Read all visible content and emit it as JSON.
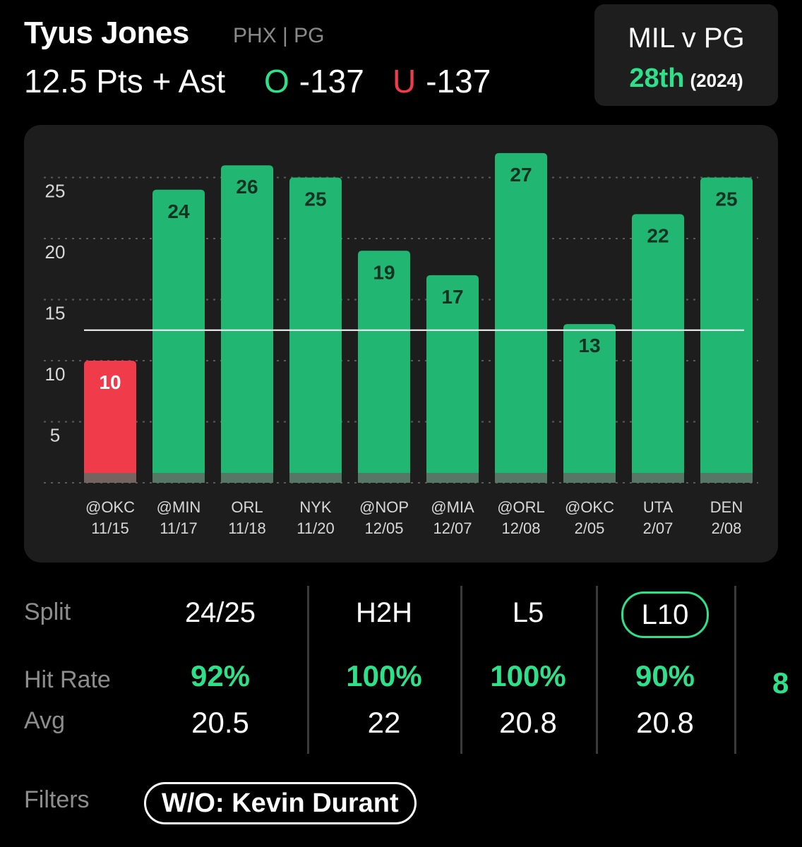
{
  "player": {
    "name": "Tyus Jones",
    "team_pos": "PHX | PG"
  },
  "prop": {
    "line_text": "12.5 Pts + Ast",
    "over_letter": "O",
    "over_odds": "-137",
    "under_letter": "U",
    "under_odds": "-137"
  },
  "matchup": {
    "title": "MIL v PG",
    "rank": "28th",
    "year": "(2024)"
  },
  "colors": {
    "over": "#22b673",
    "under": "#ef3b4a",
    "accent": "#2ee08a",
    "panel": "#1d1d1d"
  },
  "chart_data": {
    "type": "bar",
    "categories": [
      "@OKC",
      "@MIN",
      "ORL",
      "NYK",
      "@NOP",
      "@MIA",
      "@ORL",
      "@OKC",
      "UTA",
      "DEN"
    ],
    "dates": [
      "11/15",
      "11/17",
      "11/18",
      "11/20",
      "12/05",
      "12/07",
      "12/08",
      "2/05",
      "2/07",
      "2/08"
    ],
    "values": [
      10,
      24,
      26,
      25,
      19,
      17,
      27,
      13,
      22,
      25
    ],
    "line": 12.5,
    "y_ticks": [
      5,
      10,
      15,
      20,
      25
    ],
    "ylim": [
      0,
      27
    ],
    "grid": true
  },
  "splits": {
    "labels": {
      "split": "Split",
      "hit_rate": "Hit Rate",
      "avg": "Avg"
    },
    "columns": [
      {
        "name": "24/25",
        "hit": "92%",
        "avg": "20.5",
        "active": false
      },
      {
        "name": "H2H",
        "hit": "100%",
        "avg": "22",
        "active": false
      },
      {
        "name": "L5",
        "hit": "100%",
        "avg": "20.8",
        "active": false
      },
      {
        "name": "L10",
        "hit": "90%",
        "avg": "20.8",
        "active": true
      }
    ],
    "partial_hit": "8"
  },
  "filters": {
    "label": "Filters",
    "chip": "W/O: Kevin Durant"
  }
}
